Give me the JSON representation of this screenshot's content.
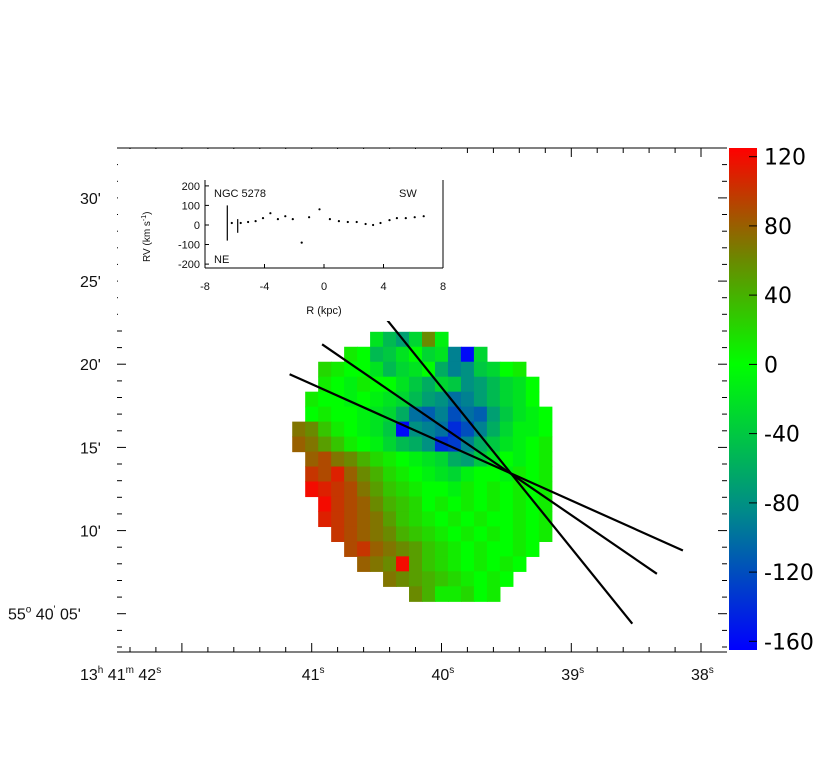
{
  "chart_data": [
    {
      "type": "heatmap",
      "description_role": "velocity map",
      "ra_tick_labels": [
        {
          "h": "13",
          "m": "41",
          "s": "42",
          "ra_s": 42
        },
        {
          "s": "41",
          "ra_s": 41
        },
        {
          "s": "40",
          "ra_s": 40
        },
        {
          "s": "39",
          "ra_s": 39
        },
        {
          "s": "38",
          "ra_s": 38
        }
      ],
      "dec_tick_labels": [
        {
          "label": "30'",
          "dec_sec": 30
        },
        {
          "label": "25'",
          "dec_sec": 25
        },
        {
          "label": "20'",
          "dec_sec": 20
        },
        {
          "label": "15'",
          "dec_sec": 15
        },
        {
          "label": "10'",
          "dec_sec": 10
        },
        {
          "deg": "55",
          "arcmin": "40",
          "arcsec": "05'",
          "dec_sec": 5
        }
      ],
      "ra_range_s": [
        42.5,
        37.8
      ],
      "dec_range_sec": [
        2.7,
        33.0
      ],
      "slits": [
        {
          "ra_s": [
            40.64,
            38.53
          ],
          "dec_sec": [
            24.8,
            4.4
          ]
        },
        {
          "ra_s": [
            40.92,
            38.34
          ],
          "dec_sec": [
            21.2,
            7.4
          ]
        },
        {
          "ra_s": [
            41.17,
            38.14
          ],
          "dec_sec": [
            19.4,
            8.8
          ]
        }
      ],
      "cells": {
        "ra_step_s": 0.1,
        "dec_step_sec": 0.9,
        "rows": [
          {
            "dec": 21.5,
            "ra0": 40.5,
            "v": [
              -20,
              -50,
              -70,
              -30,
              60,
              -10
            ]
          },
          {
            "dec": 20.6,
            "ra0": 40.7,
            "v": [
              10,
              0,
              -50,
              -40,
              -20,
              0,
              -30,
              -20,
              -90,
              -160,
              -30
            ]
          },
          {
            "dec": 19.7,
            "ra0": 40.9,
            "v": [
              20,
              10,
              0,
              0,
              -20,
              -50,
              -30,
              -20,
              0,
              -60,
              -90,
              -80,
              -40,
              -30,
              0,
              10
            ]
          },
          {
            "dec": 18.8,
            "ra0": 40.9,
            "v": [
              10,
              0,
              -10,
              10,
              0,
              0,
              -20,
              -40,
              -60,
              -30,
              -40,
              -80,
              -70,
              -50,
              -30,
              -20,
              0
            ]
          },
          {
            "dec": 17.9,
            "ra0": 41.0,
            "v": [
              10,
              0,
              0,
              -10,
              0,
              -10,
              -20,
              -30,
              -50,
              -70,
              -80,
              -100,
              -90,
              -70,
              -50,
              -30,
              -20,
              0
            ]
          },
          {
            "dec": 17.0,
            "ra0": 41.0,
            "v": [
              0,
              10,
              0,
              0,
              -10,
              -20,
              -30,
              -60,
              -100,
              -110,
              -90,
              -120,
              -100,
              -110,
              -70,
              -40,
              -20,
              -10,
              0
            ]
          },
          {
            "dec": 16.1,
            "ra0": 41.1,
            "v": [
              70,
              60,
              30,
              10,
              0,
              -10,
              -20,
              -40,
              -160,
              -80,
              -90,
              -100,
              -140,
              -120,
              -90,
              -60,
              -30,
              -10,
              -10,
              0
            ]
          },
          {
            "dec": 15.2,
            "ra0": 41.1,
            "v": [
              80,
              70,
              50,
              30,
              10,
              0,
              -10,
              -30,
              -50,
              -60,
              -80,
              -140,
              -130,
              -90,
              -60,
              -40,
              -20,
              -10,
              0,
              10
            ]
          },
          {
            "dec": 14.3,
            "ra0": 41.0,
            "v": [
              80,
              90,
              70,
              60,
              40,
              20,
              10,
              0,
              -10,
              -20,
              -30,
              -60,
              -70,
              -40,
              -20,
              0,
              -10,
              0,
              10
            ]
          },
          {
            "dec": 13.4,
            "ra0": 41.0,
            "v": [
              100,
              90,
              110,
              80,
              60,
              40,
              20,
              10,
              0,
              -10,
              -20,
              -30,
              -10,
              0,
              0,
              -10,
              10,
              0,
              10
            ]
          },
          {
            "dec": 12.5,
            "ra0": 41.0,
            "v": [
              120,
              110,
              100,
              90,
              70,
              50,
              30,
              20,
              10,
              0,
              0,
              -10,
              10,
              0,
              10,
              0,
              10,
              0,
              10
            ]
          },
          {
            "dec": 11.6,
            "ra0": 40.9,
            "v": [
              120,
              100,
              90,
              80,
              60,
              40,
              30,
              20,
              0,
              10,
              0,
              10,
              0,
              10,
              0,
              10,
              0,
              10
            ]
          },
          {
            "dec": 10.7,
            "ra0": 40.9,
            "v": [
              110,
              100,
              90,
              80,
              70,
              50,
              30,
              20,
              10,
              0,
              10,
              0,
              10,
              0,
              0,
              10,
              0,
              10
            ]
          },
          {
            "dec": 9.8,
            "ra0": 40.8,
            "v": [
              100,
              90,
              80,
              70,
              60,
              40,
              30,
              20,
              10,
              0,
              10,
              0,
              10,
              0,
              10,
              0,
              10
            ]
          },
          {
            "dec": 8.9,
            "ra0": 40.7,
            "v": [
              90,
              100,
              80,
              70,
              60,
              50,
              30,
              20,
              10,
              0,
              10,
              0,
              0,
              10,
              0
            ]
          },
          {
            "dec": 8.0,
            "ra0": 40.6,
            "v": [
              80,
              70,
              60,
              120,
              50,
              30,
              20,
              10,
              0,
              10,
              0,
              10,
              0
            ]
          },
          {
            "dec": 7.1,
            "ra0": 40.4,
            "v": [
              70,
              60,
              50,
              40,
              30,
              20,
              10,
              0,
              10,
              0
            ]
          },
          {
            "dec": 6.2,
            "ra0": 40.2,
            "v": [
              60,
              40,
              10,
              10,
              20,
              0,
              10
            ]
          }
        ]
      },
      "colorbar": {
        "min": -165,
        "max": 125,
        "tick_labels": [
          "120",
          "80",
          "40",
          "0",
          "-40",
          "-80",
          "-120",
          "-160"
        ],
        "tick_values": [
          120,
          80,
          40,
          0,
          -40,
          -80,
          -120,
          -160
        ],
        "stops": [
          {
            "v": -165,
            "color": "#0000ff"
          },
          {
            "v": -85,
            "color": "#008a8a"
          },
          {
            "v": 0,
            "color": "#00ff00"
          },
          {
            "v": 60,
            "color": "#6a8a00"
          },
          {
            "v": 125,
            "color": "#ff0000"
          }
        ]
      }
    },
    {
      "type": "scatter",
      "role": "inset",
      "title": "NGC 5278",
      "annotations": [
        "SW",
        "NE"
      ],
      "xlabel": "R (kpc)",
      "ylabel": "RV (km s-1)",
      "ylabel_parts": {
        "main": "RV (km s",
        "sup": "-1",
        "close": ")"
      },
      "x_tick_labels": [
        "-8",
        "-4",
        "0",
        "4",
        "8"
      ],
      "x_tick_values": [
        -8,
        -4,
        0,
        4,
        8
      ],
      "y_tick_labels": [
        "200",
        "100",
        "0",
        "-100",
        "-200"
      ],
      "y_tick_values": [
        200,
        100,
        0,
        -100,
        -200
      ],
      "xlim": [
        -8,
        8
      ],
      "ylim": [
        -220,
        230
      ],
      "points": [
        [
          -6.2,
          10
        ],
        [
          -5.6,
          10
        ],
        [
          -5.1,
          15
        ],
        [
          -4.6,
          20
        ],
        [
          -4.1,
          35
        ],
        [
          -3.6,
          60
        ],
        [
          -3.1,
          30
        ],
        [
          -2.6,
          45
        ],
        [
          -2.1,
          30
        ],
        [
          -1.5,
          -90
        ],
        [
          -1.0,
          40
        ],
        [
          -0.3,
          80
        ],
        [
          0.4,
          30
        ],
        [
          1.0,
          20
        ],
        [
          1.6,
          15
        ],
        [
          2.2,
          15
        ],
        [
          2.8,
          5
        ],
        [
          3.3,
          0
        ],
        [
          3.8,
          10
        ],
        [
          4.4,
          25
        ],
        [
          4.9,
          35
        ],
        [
          5.5,
          35
        ],
        [
          6.1,
          40
        ],
        [
          6.7,
          45
        ]
      ],
      "error_bars": [
        [
          -6.5,
          10,
          90
        ],
        [
          -5.8,
          -5,
          35
        ]
      ]
    }
  ]
}
